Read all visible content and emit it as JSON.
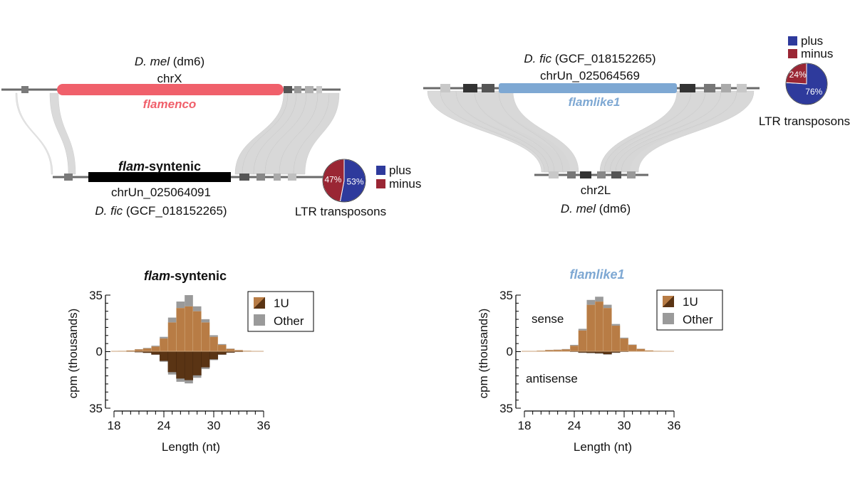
{
  "colors": {
    "flamenco": "#f0606b",
    "flamlike1": "#7ea8d3",
    "syntenic": "#000000",
    "plus": "#2e3a9c",
    "minus": "#9a2634",
    "one_u_light": "#b87c45",
    "one_u_dark": "#5a3414",
    "other": "#9a9a9a",
    "ribbon": "#d6d6d6",
    "track": "#6a6a6a"
  },
  "synteny": {
    "left": {
      "top_species": "D. mel",
      "top_assembly": "(dm6)",
      "top_chrom": "chrX",
      "top_locus": "flamenco",
      "bottom_locus_italic": "flam",
      "bottom_locus_rest": "-syntenic",
      "bottom_chrom": "chrUn_025064091",
      "bottom_species": "D. fic",
      "bottom_assembly": "(GCF_018152265)"
    },
    "right": {
      "top_species": "D. fic",
      "top_assembly": "(GCF_018152265)",
      "top_chrom": "chrUn_025064569",
      "top_locus": "flamlike1",
      "bottom_chrom": "chr2L",
      "bottom_species": "D. mel",
      "bottom_assembly": "(dm6)"
    }
  },
  "pies": [
    {
      "title": "LTR transposons",
      "slices": [
        {
          "name": "plus",
          "value": 53,
          "label": "53%"
        },
        {
          "name": "minus",
          "value": 47,
          "label": "47%"
        }
      ]
    },
    {
      "title": "LTR transposons",
      "slices": [
        {
          "name": "plus",
          "value": 76,
          "label": "76%"
        },
        {
          "name": "minus",
          "value": 24,
          "label": "24%"
        }
      ]
    }
  ],
  "pie_legend": [
    "plus",
    "minus"
  ],
  "chart_data": [
    {
      "type": "bar",
      "title_italic": "flam",
      "title_rest": "-syntenic",
      "xlabel": "Length (nt)",
      "ylabel": "cpm (thousands)",
      "x": [
        19,
        20,
        21,
        22,
        23,
        24,
        25,
        26,
        27,
        28,
        29,
        30,
        31,
        32,
        33,
        34,
        35
      ],
      "xticks": [
        "18",
        "24",
        "30",
        "36"
      ],
      "xtick_values": [
        18,
        24,
        30,
        36
      ],
      "yticks": [
        "35",
        "0",
        "35"
      ],
      "ylim": [
        -35,
        35
      ],
      "legend": [
        "1U",
        "Other"
      ],
      "series": [
        {
          "name": "sense 1U",
          "values": [
            0.2,
            0.5,
            1.2,
            1.8,
            3,
            8,
            18,
            27,
            28,
            25,
            18,
            9,
            4,
            1.5,
            0.7,
            0.3,
            0.1
          ]
        },
        {
          "name": "sense Other",
          "values": [
            0,
            0,
            0.1,
            0.3,
            0.5,
            1,
            3,
            4,
            7,
            3,
            2,
            1,
            0.5,
            0.2,
            0.1,
            0,
            0
          ]
        },
        {
          "name": "antisense 1U",
          "values": [
            0.1,
            0.2,
            0.5,
            0.9,
            2,
            6,
            13,
            17,
            18,
            15,
            10,
            5,
            2,
            0.8,
            0.3,
            0.1,
            0
          ]
        },
        {
          "name": "antisense Other",
          "values": [
            0,
            0,
            0,
            0.1,
            0.2,
            0.5,
            1.5,
            2,
            2,
            1.5,
            1,
            0.5,
            0.2,
            0.1,
            0,
            0,
            0
          ]
        }
      ]
    },
    {
      "type": "bar",
      "title_italic": "flamlike1",
      "title_rest": "",
      "xlabel": "Length (nt)",
      "ylabel": "cpm (thousands)",
      "x": [
        19,
        20,
        21,
        22,
        23,
        24,
        25,
        26,
        27,
        28,
        29,
        30,
        31,
        32,
        33,
        34,
        35
      ],
      "xticks": [
        "18",
        "24",
        "30",
        "36"
      ],
      "xtick_values": [
        18,
        24,
        30,
        36
      ],
      "yticks": [
        "35",
        "0",
        "35"
      ],
      "ylim": [
        -35,
        35
      ],
      "legend": [
        "1U",
        "Other"
      ],
      "annotations": [
        "sense",
        "antisense"
      ],
      "series": [
        {
          "name": "sense 1U",
          "values": [
            0.1,
            0.4,
            0.8,
            0.9,
            1.2,
            3.5,
            13,
            29,
            31,
            27,
            16,
            8,
            4,
            1.5,
            0.5,
            0.2,
            0.1
          ]
        },
        {
          "name": "sense Other",
          "values": [
            0,
            0,
            0.1,
            0.1,
            0.2,
            0.5,
            1,
            3,
            3,
            2,
            1,
            0.5,
            0.2,
            0.1,
            0,
            0,
            0
          ]
        },
        {
          "name": "antisense 1U",
          "values": [
            0,
            0,
            0,
            0.1,
            0.1,
            0.3,
            0.8,
            1,
            1.2,
            1.8,
            0.8,
            0.3,
            0.1,
            0,
            0,
            0,
            0
          ]
        },
        {
          "name": "antisense Other",
          "values": [
            0,
            0,
            0,
            0,
            0,
            0.1,
            0.2,
            0.2,
            0.3,
            0.3,
            0.2,
            0.1,
            0,
            0,
            0,
            0,
            0
          ]
        }
      ]
    }
  ]
}
